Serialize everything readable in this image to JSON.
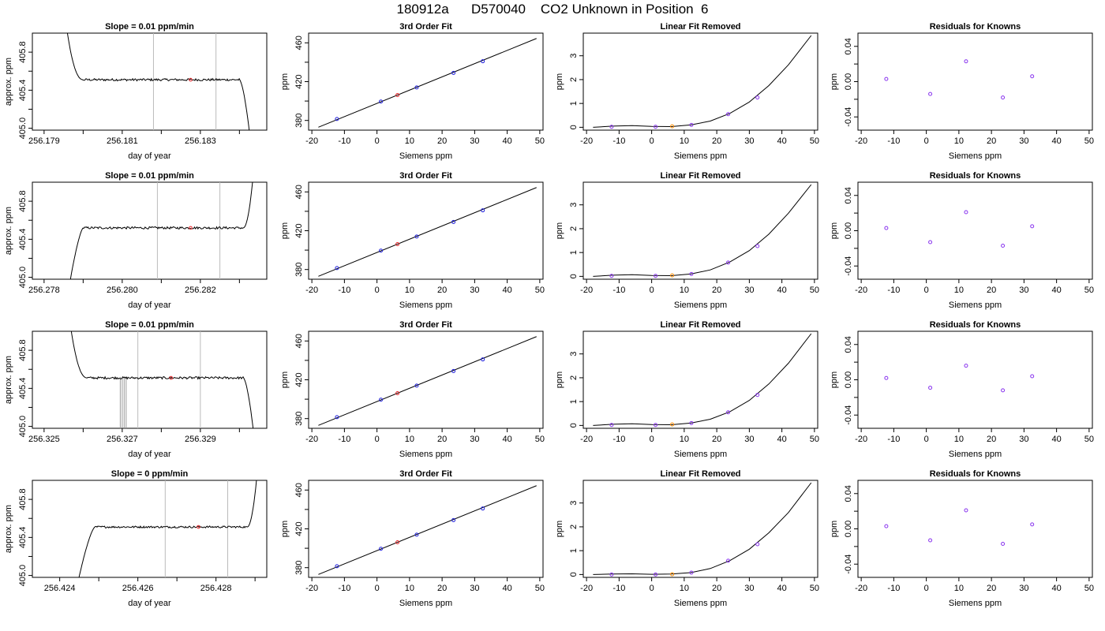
{
  "page": {
    "title": "180912a      D570040    CO2 Unknown in Position  6"
  },
  "colors": {
    "trace": "#000000",
    "marker_red": "#e8262a",
    "marker_blue": "#2222dd",
    "marker_purple": "#8833ee",
    "marker_orange": "#ff8c00",
    "gray_line": "#bbbbbb",
    "gray_bar": "#999999"
  },
  "chart_data": [
    {
      "type": "line",
      "row": 0,
      "panel": "trace",
      "title": "Slope =  0.01  ppm/min",
      "xlabel": "day of year",
      "ylabel": "approx. ppm",
      "xlim": [
        256.1787,
        256.1847
      ],
      "ylim": [
        404.98,
        406.0
      ],
      "xticks": [
        256.179,
        256.18,
        256.181,
        256.182,
        256.183,
        256.184
      ],
      "xtick_labels": [
        "256.179",
        "",
        "256.181",
        "",
        "256.183",
        ""
      ],
      "yticks": [
        405.0,
        405.2,
        405.4,
        405.6,
        405.8
      ],
      "ytick_labels": [
        "405.0",
        "",
        "405.4",
        "",
        "405.8"
      ],
      "vlines": [
        256.1818,
        256.1834
      ],
      "marker": {
        "x": 256.18275,
        "y": 405.51
      },
      "trace": {
        "x_start": 256.1795,
        "x_end": 256.1843,
        "plateau": 405.51,
        "noise": 0.012,
        "rise_end": 256.18,
        "fall_start": 256.184,
        "start_value": 406.3,
        "end_value": 404.8,
        "rising": false
      },
      "spikes": []
    },
    {
      "type": "line",
      "row": 0,
      "panel": "fit",
      "title": "3rd Order Fit",
      "xlabel": "Siemens ppm",
      "ylabel": "ppm",
      "xlim": [
        -21,
        51
      ],
      "ylim": [
        370,
        470
      ],
      "xticks": [
        -20,
        -10,
        0,
        10,
        20,
        30,
        40,
        50
      ],
      "xtick_labels": [
        "-20",
        "-10",
        "0",
        "10",
        "20",
        "30",
        "40",
        "50"
      ],
      "yticks": [
        380,
        400,
        420,
        440,
        460
      ],
      "ytick_labels": [
        "380",
        "",
        "420",
        "",
        "460"
      ],
      "line": {
        "x": [
          -18,
          49
        ],
        "y": [
          373,
          464.5
        ]
      },
      "points_blue": {
        "x": [
          -12.3,
          1.2,
          12.2,
          23.5,
          32.5
        ],
        "y": [
          381.5,
          399.5,
          414.0,
          429.0,
          441.0
        ]
      },
      "point_red": {
        "x": 6.3,
        "y": 406.2
      }
    },
    {
      "type": "line",
      "row": 0,
      "panel": "linear-removed",
      "title": "Linear Fit Removed",
      "xlabel": "Siemens ppm",
      "ylabel": "ppm",
      "xlim": [
        -21,
        51
      ],
      "ylim": [
        -0.12,
        3.95
      ],
      "xticks": [
        -20,
        -10,
        0,
        10,
        20,
        30,
        40,
        50
      ],
      "xtick_labels": [
        "-20",
        "-10",
        "0",
        "10",
        "20",
        "30",
        "40",
        "50"
      ],
      "yticks": [
        0,
        1,
        2,
        3
      ],
      "ytick_labels": [
        "0",
        "1",
        "2",
        "3"
      ],
      "curve": {
        "x": [
          -18,
          -12,
          -6,
          0,
          6,
          12,
          18,
          24,
          30,
          36,
          42,
          49
        ],
        "y": [
          0.0,
          0.05,
          0.07,
          0.04,
          0.03,
          0.1,
          0.26,
          0.58,
          1.06,
          1.75,
          2.62,
          3.85
        ]
      },
      "points_purple": {
        "x": [
          -12.3,
          1.2,
          12.2,
          23.5,
          32.5
        ],
        "y": [
          0.02,
          0.02,
          0.1,
          0.55,
          1.25
        ]
      },
      "point_orange": {
        "x": 6.3,
        "y": 0.04
      }
    },
    {
      "type": "scatter",
      "row": 0,
      "panel": "residuals",
      "title": "Residuals for Knowns",
      "xlabel": "Siemens ppm",
      "ylabel": "ppm",
      "xlim": [
        -21,
        51
      ],
      "ylim": [
        -0.055,
        0.055
      ],
      "xticks": [
        -20,
        -10,
        0,
        10,
        20,
        30,
        40,
        50
      ],
      "xtick_labels": [
        "-20",
        "-10",
        "0",
        "10",
        "20",
        "30",
        "40",
        "50"
      ],
      "yticks": [
        -0.04,
        -0.02,
        0.0,
        0.02,
        0.04
      ],
      "ytick_labels": [
        "-0.04",
        "",
        "0.00",
        "",
        "0.04"
      ],
      "x": [
        -12.3,
        1.2,
        12.2,
        23.5,
        32.5
      ],
      "y": [
        0.003,
        -0.014,
        0.023,
        -0.018,
        0.006
      ]
    },
    {
      "type": "line",
      "row": 1,
      "panel": "trace",
      "title": "Slope =  0.01  ppm/min",
      "xlabel": "day of year",
      "ylabel": "approx. ppm",
      "xlim": [
        256.2777,
        256.2837
      ],
      "ylim": [
        404.98,
        406.0
      ],
      "xticks": [
        256.278,
        256.279,
        256.28,
        256.281,
        256.282,
        256.283
      ],
      "xtick_labels": [
        "256.278",
        "",
        "256.280",
        "",
        "256.282",
        ""
      ],
      "yticks": [
        405.0,
        405.2,
        405.4,
        405.6,
        405.8
      ],
      "ytick_labels": [
        "405.0",
        "",
        "405.4",
        "",
        "405.8"
      ],
      "vlines": [
        256.2809,
        256.2825
      ],
      "marker": {
        "x": 256.28175,
        "y": 405.52
      },
      "trace": {
        "x_start": 256.2786,
        "x_end": 256.2834,
        "plateau": 405.52,
        "noise": 0.012,
        "rise_end": 256.279,
        "fall_start": 256.2831,
        "start_value": 404.8,
        "end_value": 406.3,
        "rising": true
      },
      "spikes": []
    },
    {
      "type": "line",
      "row": 1,
      "panel": "fit",
      "title": "3rd Order Fit",
      "xlabel": "Siemens ppm",
      "ylabel": "ppm",
      "xlim": [
        -21,
        51
      ],
      "ylim": [
        370,
        470
      ],
      "xticks": [
        -20,
        -10,
        0,
        10,
        20,
        30,
        40,
        50
      ],
      "xtick_labels": [
        "-20",
        "-10",
        "0",
        "10",
        "20",
        "30",
        "40",
        "50"
      ],
      "yticks": [
        380,
        400,
        420,
        440,
        460
      ],
      "ytick_labels": [
        "380",
        "",
        "420",
        "",
        "460"
      ],
      "line": {
        "x": [
          -18,
          49
        ],
        "y": [
          373,
          464.5
        ]
      },
      "points_blue": {
        "x": [
          -12.3,
          1.2,
          12.2,
          23.5,
          32.5
        ],
        "y": [
          381.5,
          399.5,
          414.0,
          429.0,
          441.0
        ]
      },
      "point_red": {
        "x": 6.3,
        "y": 406.2
      }
    },
    {
      "type": "line",
      "row": 1,
      "panel": "linear-removed",
      "title": "Linear Fit Removed",
      "xlabel": "Siemens ppm",
      "ylabel": "ppm",
      "xlim": [
        -21,
        51
      ],
      "ylim": [
        -0.12,
        3.95
      ],
      "xticks": [
        -20,
        -10,
        0,
        10,
        20,
        30,
        40,
        50
      ],
      "xtick_labels": [
        "-20",
        "-10",
        "0",
        "10",
        "20",
        "30",
        "40",
        "50"
      ],
      "yticks": [
        0,
        1,
        2,
        3
      ],
      "ytick_labels": [
        "0",
        "1",
        "2",
        "3"
      ],
      "curve": {
        "x": [
          -18,
          -12,
          -6,
          0,
          6,
          12,
          18,
          24,
          30,
          36,
          42,
          49
        ],
        "y": [
          0.0,
          0.05,
          0.07,
          0.04,
          0.03,
          0.1,
          0.27,
          0.6,
          1.08,
          1.77,
          2.65,
          3.85
        ]
      },
      "points_purple": {
        "x": [
          -12.3,
          1.2,
          12.2,
          23.5,
          32.5
        ],
        "y": [
          0.02,
          0.02,
          0.1,
          0.58,
          1.27
        ]
      },
      "point_orange": {
        "x": 6.3,
        "y": 0.04
      }
    },
    {
      "type": "scatter",
      "row": 1,
      "panel": "residuals",
      "title": "Residuals for Knowns",
      "xlabel": "Siemens ppm",
      "ylabel": "ppm",
      "xlim": [
        -21,
        51
      ],
      "ylim": [
        -0.055,
        0.055
      ],
      "xticks": [
        -20,
        -10,
        0,
        10,
        20,
        30,
        40,
        50
      ],
      "xtick_labels": [
        "-20",
        "-10",
        "0",
        "10",
        "20",
        "30",
        "40",
        "50"
      ],
      "yticks": [
        -0.04,
        -0.02,
        0.0,
        0.02,
        0.04
      ],
      "ytick_labels": [
        "-0.04",
        "",
        "0.00",
        "",
        "0.04"
      ],
      "x": [
        -12.3,
        1.2,
        12.2,
        23.5,
        32.5
      ],
      "y": [
        0.003,
        -0.013,
        0.021,
        -0.017,
        0.005
      ]
    },
    {
      "type": "line",
      "row": 2,
      "panel": "trace",
      "title": "Slope =  0.01  ppm/min",
      "xlabel": "day of year",
      "ylabel": "approx. ppm",
      "xlim": [
        256.3247,
        256.3307
      ],
      "ylim": [
        404.98,
        406.0
      ],
      "xticks": [
        256.325,
        256.326,
        256.327,
        256.328,
        256.329,
        256.33
      ],
      "xtick_labels": [
        "256.325",
        "",
        "256.327",
        "",
        "256.329",
        ""
      ],
      "yticks": [
        405.0,
        405.2,
        405.4,
        405.6,
        405.8
      ],
      "ytick_labels": [
        "405.0",
        "",
        "405.4",
        "",
        "405.8"
      ],
      "vlines": [
        256.3274,
        256.329
      ],
      "marker": {
        "x": 256.32825,
        "y": 405.51
      },
      "trace": {
        "x_start": 256.3256,
        "x_end": 256.3304,
        "plateau": 405.51,
        "noise": 0.012,
        "rise_end": 256.3261,
        "fall_start": 256.3301,
        "start_value": 406.3,
        "end_value": 404.8,
        "rising": false
      },
      "spikes": [
        256.32695,
        256.327,
        256.32705,
        256.3271
      ]
    },
    {
      "type": "line",
      "row": 2,
      "panel": "fit",
      "title": "3rd Order Fit",
      "xlabel": "Siemens ppm",
      "ylabel": "ppm",
      "xlim": [
        -21,
        51
      ],
      "ylim": [
        370,
        470
      ],
      "xticks": [
        -20,
        -10,
        0,
        10,
        20,
        30,
        40,
        50
      ],
      "xtick_labels": [
        "-20",
        "-10",
        "0",
        "10",
        "20",
        "30",
        "40",
        "50"
      ],
      "yticks": [
        380,
        400,
        420,
        440,
        460
      ],
      "ytick_labels": [
        "380",
        "",
        "420",
        "",
        "460"
      ],
      "line": {
        "x": [
          -18,
          49
        ],
        "y": [
          373,
          464.5
        ]
      },
      "points_blue": {
        "x": [
          -12.3,
          1.2,
          12.2,
          23.5,
          32.5
        ],
        "y": [
          381.5,
          399.5,
          414.0,
          429.0,
          441.0
        ]
      },
      "point_red": {
        "x": 6.3,
        "y": 406.2
      }
    },
    {
      "type": "line",
      "row": 2,
      "panel": "linear-removed",
      "title": "Linear Fit Removed",
      "xlabel": "Siemens ppm",
      "ylabel": "ppm",
      "xlim": [
        -21,
        51
      ],
      "ylim": [
        -0.12,
        3.95
      ],
      "xticks": [
        -20,
        -10,
        0,
        10,
        20,
        30,
        40,
        50
      ],
      "xtick_labels": [
        "-20",
        "-10",
        "0",
        "10",
        "20",
        "30",
        "40",
        "50"
      ],
      "yticks": [
        0,
        1,
        2,
        3
      ],
      "ytick_labels": [
        "0",
        "1",
        "2",
        "3"
      ],
      "curve": {
        "x": [
          -18,
          -12,
          -6,
          0,
          6,
          12,
          18,
          24,
          30,
          36,
          42,
          49
        ],
        "y": [
          0.0,
          0.05,
          0.07,
          0.04,
          0.03,
          0.1,
          0.26,
          0.57,
          1.05,
          1.74,
          2.61,
          3.85
        ]
      },
      "points_purple": {
        "x": [
          -12.3,
          1.2,
          12.2,
          23.5,
          32.5
        ],
        "y": [
          0.02,
          0.02,
          0.1,
          0.55,
          1.28
        ]
      },
      "point_orange": {
        "x": 6.3,
        "y": 0.04
      }
    },
    {
      "type": "scatter",
      "row": 2,
      "panel": "residuals",
      "title": "Residuals for Knowns",
      "xlabel": "Siemens ppm",
      "ylabel": "ppm",
      "xlim": [
        -21,
        51
      ],
      "ylim": [
        -0.055,
        0.055
      ],
      "xticks": [
        -20,
        -10,
        0,
        10,
        20,
        30,
        40,
        50
      ],
      "xtick_labels": [
        "-20",
        "-10",
        "0",
        "10",
        "20",
        "30",
        "40",
        "50"
      ],
      "yticks": [
        -0.04,
        -0.02,
        0.0,
        0.02,
        0.04
      ],
      "ytick_labels": [
        "-0.04",
        "",
        "0.00",
        "",
        "0.04"
      ],
      "x": [
        -12.3,
        1.2,
        12.2,
        23.5,
        32.5
      ],
      "y": [
        0.002,
        -0.009,
        0.016,
        -0.012,
        0.004
      ]
    },
    {
      "type": "line",
      "row": 3,
      "panel": "trace",
      "title": "Slope =  0  ppm/min",
      "xlabel": "day of year",
      "ylabel": "approx. ppm",
      "xlim": [
        256.4233,
        256.4293
      ],
      "ylim": [
        404.98,
        406.0
      ],
      "xticks": [
        256.424,
        256.425,
        256.426,
        256.427,
        256.428,
        256.429
      ],
      "xtick_labels": [
        "256.424",
        "",
        "256.426",
        "",
        "256.428",
        ""
      ],
      "yticks": [
        405.0,
        405.2,
        405.4,
        405.6,
        405.8
      ],
      "ytick_labels": [
        "405.0",
        "",
        "405.4",
        "",
        "405.8"
      ],
      "vlines": [
        256.4267,
        256.4283
      ],
      "marker": {
        "x": 256.42755,
        "y": 405.51
      },
      "trace": {
        "x_start": 256.4244,
        "x_end": 256.4291,
        "plateau": 405.51,
        "noise": 0.01,
        "rise_end": 256.4249,
        "fall_start": 256.4288,
        "start_value": 404.8,
        "end_value": 406.3,
        "rising": true
      },
      "spikes": []
    },
    {
      "type": "line",
      "row": 3,
      "panel": "fit",
      "title": "3rd Order Fit",
      "xlabel": "Siemens ppm",
      "ylabel": "ppm",
      "xlim": [
        -21,
        51
      ],
      "ylim": [
        370,
        470
      ],
      "xticks": [
        -20,
        -10,
        0,
        10,
        20,
        30,
        40,
        50
      ],
      "xtick_labels": [
        "-20",
        "-10",
        "0",
        "10",
        "20",
        "30",
        "40",
        "50"
      ],
      "yticks": [
        380,
        400,
        420,
        440,
        460
      ],
      "ytick_labels": [
        "380",
        "",
        "420",
        "",
        "460"
      ],
      "line": {
        "x": [
          -18,
          49
        ],
        "y": [
          373,
          464.5
        ]
      },
      "points_blue": {
        "x": [
          -12.3,
          1.2,
          12.2,
          23.5,
          32.5
        ],
        "y": [
          381.5,
          399.5,
          414.0,
          429.0,
          441.0
        ]
      },
      "point_red": {
        "x": 6.3,
        "y": 406.2
      }
    },
    {
      "type": "line",
      "row": 3,
      "panel": "linear-removed",
      "title": "Linear Fit Removed",
      "xlabel": "Siemens ppm",
      "ylabel": "ppm",
      "xlim": [
        -21,
        51
      ],
      "ylim": [
        -0.12,
        3.95
      ],
      "xticks": [
        -20,
        -10,
        0,
        10,
        20,
        30,
        40,
        50
      ],
      "xtick_labels": [
        "-20",
        "-10",
        "0",
        "10",
        "20",
        "30",
        "40",
        "50"
      ],
      "yticks": [
        0,
        1,
        2,
        3
      ],
      "ytick_labels": [
        "0",
        "1",
        "2",
        "3"
      ],
      "curve": {
        "x": [
          -18,
          -12,
          -6,
          0,
          6,
          12,
          18,
          24,
          30,
          36,
          42,
          49
        ],
        "y": [
          0.0,
          0.02,
          0.03,
          0.01,
          0.02,
          0.08,
          0.25,
          0.58,
          1.06,
          1.75,
          2.6,
          3.85
        ]
      },
      "points_purple": {
        "x": [
          -12.3,
          1.2,
          12.2,
          23.5,
          32.5
        ],
        "y": [
          0.0,
          0.0,
          0.08,
          0.58,
          1.27
        ]
      },
      "point_orange": {
        "x": 6.3,
        "y": 0.01
      }
    },
    {
      "type": "scatter",
      "row": 3,
      "panel": "residuals",
      "title": "Residuals for Knowns",
      "xlabel": "Siemens ppm",
      "ylabel": "ppm",
      "xlim": [
        -21,
        51
      ],
      "ylim": [
        -0.055,
        0.055
      ],
      "xticks": [
        -20,
        -10,
        0,
        10,
        20,
        30,
        40,
        50
      ],
      "xtick_labels": [
        "-20",
        "-10",
        "0",
        "10",
        "20",
        "30",
        "40",
        "50"
      ],
      "yticks": [
        -0.04,
        -0.02,
        0.0,
        0.02,
        0.04
      ],
      "ytick_labels": [
        "-0.04",
        "",
        "0.00",
        "",
        "0.04"
      ],
      "x": [
        -12.3,
        1.2,
        12.2,
        23.5,
        32.5
      ],
      "y": [
        0.003,
        -0.013,
        0.021,
        -0.017,
        0.005
      ]
    }
  ]
}
